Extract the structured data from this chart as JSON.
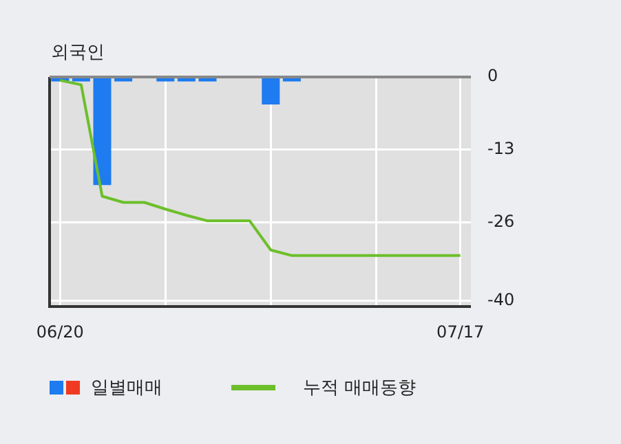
{
  "chart_data": {
    "type": "bar",
    "title": "외국인",
    "categories": [
      "06/20",
      null,
      null,
      null,
      null,
      null,
      null,
      null,
      null,
      null,
      null,
      null,
      null,
      null,
      null,
      null,
      null,
      null,
      null,
      "07/17"
    ],
    "series": [
      {
        "name": "일별매매",
        "color": "#1e7bf0",
        "values": [
          -0.8,
          -0.8,
          -19.3,
          -0.8,
          0,
          -0.8,
          -0.8,
          -0.8,
          0,
          0,
          -4.9,
          -0.8,
          0,
          0,
          0,
          0,
          0,
          0,
          0,
          0
        ]
      },
      {
        "name": "누적 매매동향",
        "type": "line",
        "color": "#6cbf2a",
        "values": [
          -0.6,
          -1.4,
          -21.3,
          -22.4,
          -22.4,
          -23.6,
          -24.7,
          -25.7,
          -25.7,
          -25.7,
          -30.9,
          -31.9,
          -31.9,
          -31.9,
          -31.9,
          -31.9,
          -31.9,
          -31.9,
          -31.9,
          -31.9
        ]
      }
    ],
    "ylim": [
      -41,
      0
    ],
    "yticks": [
      0,
      -13,
      -26,
      -40
    ],
    "grid": true,
    "legend": "bottom",
    "marker": "none"
  }
}
